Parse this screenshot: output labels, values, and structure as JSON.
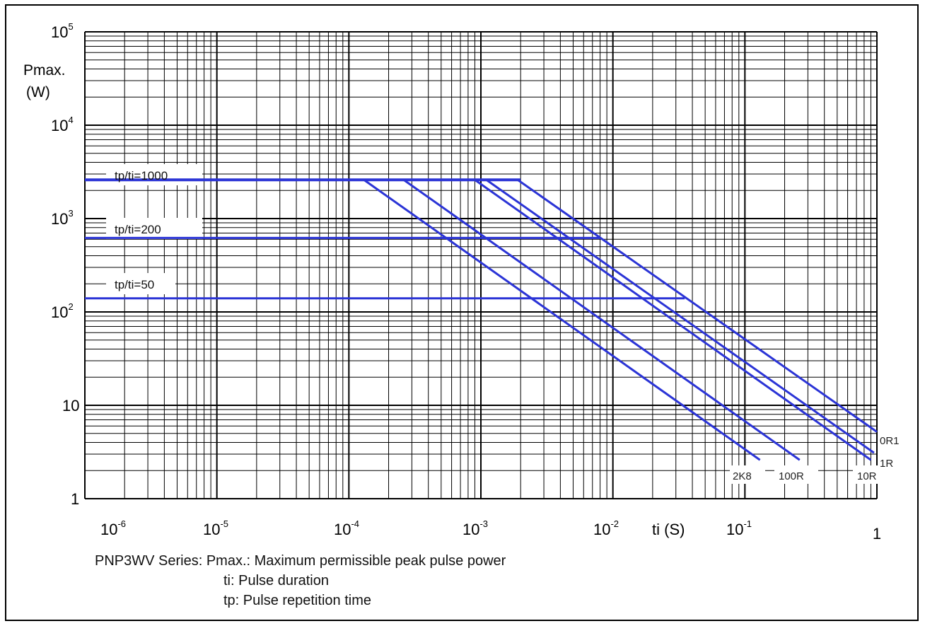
{
  "chart_data": {
    "type": "line",
    "x_scale": "log",
    "y_scale": "log",
    "xlim": [
      1e-06,
      1
    ],
    "ylim": [
      1,
      100000
    ],
    "grid": true,
    "xlabel": "ti (S)",
    "ylabel_line1": "Pmax.",
    "ylabel_line2": "(W)",
    "x_ticks": [
      {
        "base": "10",
        "exp": "-6",
        "value": 1e-06
      },
      {
        "base": "10",
        "exp": "-5",
        "value": 1e-05
      },
      {
        "base": "10",
        "exp": "-4",
        "value": 0.0001
      },
      {
        "base": "10",
        "exp": "-3",
        "value": 0.001
      },
      {
        "base": "10",
        "exp": "-2",
        "value": 0.01
      },
      {
        "base": "10",
        "exp": "-1",
        "value": 0.1
      },
      {
        "base": "1",
        "exp": "",
        "value": 1
      }
    ],
    "y_ticks": [
      {
        "base": "10",
        "exp": "5",
        "value": 100000
      },
      {
        "base": "10",
        "exp": "4",
        "value": 10000
      },
      {
        "base": "10",
        "exp": "3",
        "value": 1000
      },
      {
        "base": "10",
        "exp": "2",
        "value": 100
      },
      {
        "base": "10",
        "exp": "",
        "value": 10
      },
      {
        "base": "1",
        "exp": "",
        "value": 1
      }
    ],
    "ratio_labels": [
      "tp/ti=1000",
      "tp/ti=200",
      "tp/ti=50"
    ],
    "ratio_levels": [
      {
        "label": "tp/ti=1000",
        "y": 2600,
        "x_end": 0.002
      },
      {
        "label": "tp/ti=200",
        "y": 620,
        "x_end": 0.008
      },
      {
        "label": "tp/ti=50",
        "y": 140,
        "x_end": 0.035
      }
    ],
    "series": [
      {
        "name": "2K8",
        "x": [
          0.00013,
          0.13
        ],
        "y": [
          2600,
          2.6
        ]
      },
      {
        "name": "100R",
        "x": [
          0.00026,
          0.26
        ],
        "y": [
          2600,
          2.6
        ]
      },
      {
        "name": "10R",
        "x": [
          0.0009,
          0.9
        ],
        "y": [
          2600,
          2.6
        ]
      },
      {
        "name": "1R",
        "x": [
          0.0011,
          0.95
        ],
        "y": [
          2600,
          3.1
        ]
      },
      {
        "name": "0R1",
        "x": [
          0.0019,
          1.0
        ],
        "y": [
          2600,
          5.2
        ]
      }
    ],
    "color": "#2b34d6"
  },
  "caption": {
    "line1": "PNP3WV Series: Pmax.: Maximum permissible peak pulse power",
    "line2": "ti: Pulse duration",
    "line3": "tp: Pulse repetition time"
  }
}
